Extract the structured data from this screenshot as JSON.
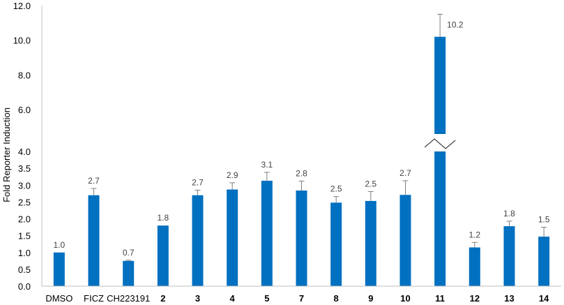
{
  "chart_data": {
    "type": "bar",
    "title": "",
    "xlabel": "",
    "ylabel": "Fold Reporter Induction",
    "ylim": [
      0,
      12
    ],
    "axis_break": [
      4.0,
      6.0
    ],
    "lower_ticks": [
      "0.0",
      "0.5",
      "1.0",
      "1.5",
      "2.0",
      "2.5",
      "3.0",
      "3.5",
      "4.0"
    ],
    "upper_ticks": [
      "6.0",
      "8.0",
      "10.0",
      "12.0"
    ],
    "grid": false,
    "legend": "none",
    "bar_color": "#0070C0",
    "categories": [
      "DMSO",
      "FICZ",
      "CH223191",
      "2",
      "3",
      "4",
      "5",
      "7",
      "8",
      "9",
      "10",
      "11",
      "12",
      "13",
      "14"
    ],
    "bold_categories": [
      "2",
      "3",
      "4",
      "5",
      "7",
      "8",
      "9",
      "10",
      "11",
      "12",
      "13",
      "14"
    ],
    "values": [
      1.0,
      2.7,
      0.75,
      1.8,
      2.7,
      2.87,
      3.13,
      2.84,
      2.48,
      2.53,
      2.71,
      10.2,
      1.15,
      1.78,
      1.47
    ],
    "errors": [
      0,
      0.2,
      0.02,
      0,
      0.15,
      0.2,
      0.25,
      0.28,
      0.18,
      0.28,
      0.42,
      1.3,
      0.15,
      0.15,
      0.28
    ],
    "data_labels": [
      "1.0",
      "2.7",
      "0.7",
      "1.8",
      "2.7",
      "2.9",
      "3.1",
      "2.8",
      "2.5",
      "2.5",
      "2.7",
      "10.2",
      "1.2",
      "1.8",
      "1.5"
    ]
  }
}
